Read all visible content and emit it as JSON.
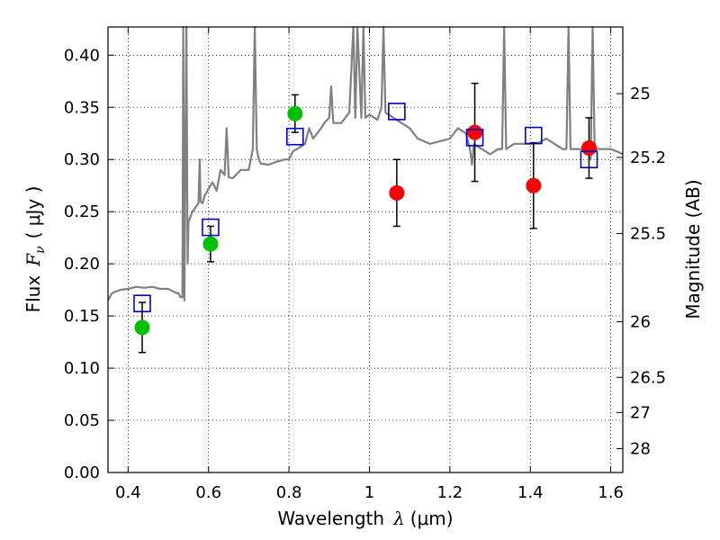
{
  "chart_data": {
    "type": "scatter",
    "xlabel_text": "Wavelength",
    "xlabel_symbol": "λ",
    "xlabel_unit": "(μm)",
    "ylabel_text": "Flux",
    "ylabel_symbol": "F",
    "ylabel_subscript": "ν",
    "ylabel_unit": "( μJy )",
    "y2label": "Magnitude (AB)",
    "xlim": [
      0.35,
      1.63
    ],
    "ylim": [
      0.0,
      0.427
    ],
    "grid": true,
    "xticks": [
      {
        "value": 0.4,
        "label": "0.4"
      },
      {
        "value": 0.6,
        "label": "0.6"
      },
      {
        "value": 0.8,
        "label": "0.8"
      },
      {
        "value": 1.0,
        "label": "1"
      },
      {
        "value": 1.2,
        "label": "1.2"
      },
      {
        "value": 1.4,
        "label": "1.4"
      },
      {
        "value": 1.6,
        "label": "1.6"
      }
    ],
    "yticks": [
      {
        "value": 0.0,
        "label": "0.00"
      },
      {
        "value": 0.05,
        "label": "0.05"
      },
      {
        "value": 0.1,
        "label": "0.10"
      },
      {
        "value": 0.15,
        "label": "0.15"
      },
      {
        "value": 0.2,
        "label": "0.20"
      },
      {
        "value": 0.25,
        "label": "0.25"
      },
      {
        "value": 0.3,
        "label": "0.30"
      },
      {
        "value": 0.35,
        "label": "0.35"
      },
      {
        "value": 0.4,
        "label": "0.40"
      }
    ],
    "mag_ticks": [
      {
        "mag": 25,
        "label": "25"
      },
      {
        "mag": 25.2,
        "label": "25.2"
      },
      {
        "mag": 25.5,
        "label": "25.5"
      },
      {
        "mag": 26,
        "label": "26"
      },
      {
        "mag": 26.5,
        "label": "26.5"
      },
      {
        "mag": 27,
        "label": "27"
      },
      {
        "mag": 28,
        "label": "28"
      }
    ],
    "sed_model": {
      "name": "model SED",
      "color": "#808080",
      "x": [
        0.35,
        0.36,
        0.38,
        0.4,
        0.42,
        0.44,
        0.46,
        0.48,
        0.5,
        0.52,
        0.525,
        0.53,
        0.535,
        0.537,
        0.54,
        0.545,
        0.548,
        0.55,
        0.56,
        0.575,
        0.578,
        0.58,
        0.585,
        0.59,
        0.6,
        0.61,
        0.62,
        0.63,
        0.64,
        0.645,
        0.65,
        0.66,
        0.68,
        0.7,
        0.71,
        0.715,
        0.72,
        0.725,
        0.73,
        0.75,
        0.77,
        0.79,
        0.8,
        0.81,
        0.82,
        0.84,
        0.85,
        0.86,
        0.87,
        0.88,
        0.89,
        0.9,
        0.905,
        0.91,
        0.93,
        0.95,
        0.96,
        0.965,
        0.97,
        0.98,
        0.985,
        0.99,
        1.0,
        1.02,
        1.03,
        1.035,
        1.04,
        1.06,
        1.08,
        1.1,
        1.12,
        1.15,
        1.18,
        1.2,
        1.22,
        1.24,
        1.25,
        1.255,
        1.26,
        1.27,
        1.28,
        1.3,
        1.32,
        1.33,
        1.335,
        1.34,
        1.36,
        1.38,
        1.4,
        1.42,
        1.44,
        1.46,
        1.48,
        1.49,
        1.495,
        1.5,
        1.52,
        1.54,
        1.55,
        1.555,
        1.56,
        1.58,
        1.6,
        1.62,
        1.63
      ],
      "y": [
        0.165,
        0.172,
        0.175,
        0.176,
        0.178,
        0.177,
        0.178,
        0.176,
        0.176,
        0.172,
        0.172,
        0.168,
        0.168,
        0.43,
        0.165,
        0.43,
        0.2,
        0.24,
        0.25,
        0.258,
        0.3,
        0.26,
        0.258,
        0.265,
        0.272,
        0.278,
        0.27,
        0.29,
        0.285,
        0.33,
        0.283,
        0.282,
        0.29,
        0.29,
        0.31,
        0.43,
        0.31,
        0.3,
        0.296,
        0.295,
        0.298,
        0.3,
        0.3,
        0.308,
        0.31,
        0.315,
        0.33,
        0.32,
        0.325,
        0.33,
        0.336,
        0.34,
        0.37,
        0.335,
        0.335,
        0.345,
        0.43,
        0.34,
        0.43,
        0.34,
        0.43,
        0.34,
        0.343,
        0.338,
        0.35,
        0.43,
        0.345,
        0.34,
        0.335,
        0.33,
        0.32,
        0.315,
        0.318,
        0.32,
        0.33,
        0.325,
        0.31,
        0.295,
        0.315,
        0.312,
        0.31,
        0.305,
        0.31,
        0.31,
        0.43,
        0.31,
        0.315,
        0.315,
        0.315,
        0.316,
        0.32,
        0.315,
        0.31,
        0.31,
        0.43,
        0.31,
        0.31,
        0.31,
        0.3,
        0.43,
        0.31,
        0.31,
        0.31,
        0.307,
        0.305
      ]
    },
    "series": [
      {
        "name": "green points",
        "color": "#00c000",
        "points": [
          {
            "x": 0.435,
            "y": 0.139,
            "err": 0.024
          },
          {
            "x": 0.605,
            "y": 0.219,
            "err": 0.017
          },
          {
            "x": 0.815,
            "y": 0.344,
            "err": 0.018
          }
        ]
      },
      {
        "name": "red points",
        "color": "#ff0000",
        "points": [
          {
            "x": 1.068,
            "y": 0.268,
            "err": 0.032
          },
          {
            "x": 1.262,
            "y": 0.326,
            "err": 0.047
          },
          {
            "x": 1.408,
            "y": 0.275,
            "err": 0.041
          },
          {
            "x": 1.546,
            "y": 0.311,
            "err": 0.029
          }
        ]
      },
      {
        "name": "model photometry",
        "color": "#0000cc",
        "points": [
          {
            "x": 0.435,
            "y": 0.162
          },
          {
            "x": 0.605,
            "y": 0.235
          },
          {
            "x": 0.815,
            "y": 0.322
          },
          {
            "x": 1.068,
            "y": 0.346
          },
          {
            "x": 1.262,
            "y": 0.321
          },
          {
            "x": 1.408,
            "y": 0.323
          },
          {
            "x": 1.546,
            "y": 0.3
          }
        ]
      }
    ]
  }
}
